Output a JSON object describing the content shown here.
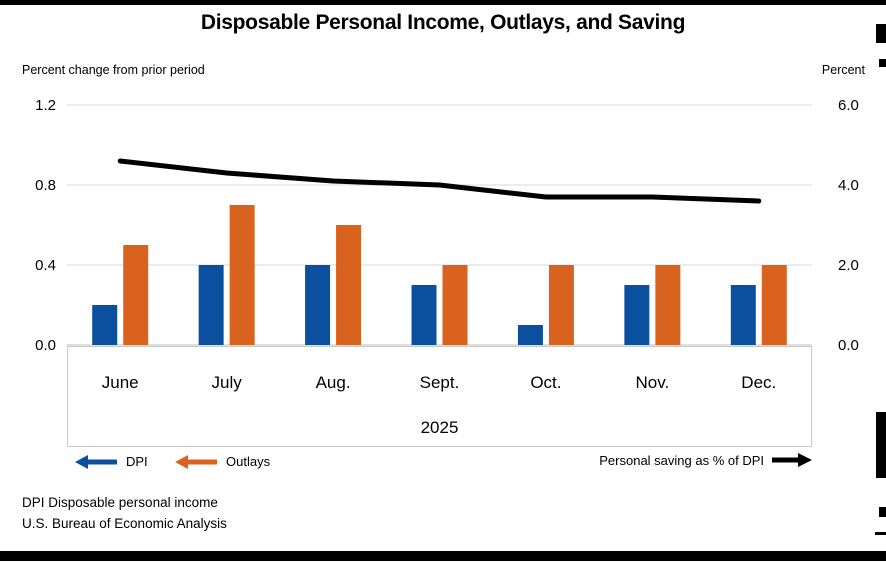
{
  "chart_data": {
    "type": "bar",
    "title": "Disposable Personal Income, Outlays, and Saving",
    "categories": [
      "June",
      "July",
      "Aug.",
      "Sept.",
      "Oct.",
      "Nov.",
      "Dec."
    ],
    "year_label": "2025",
    "series": [
      {
        "name": "DPI",
        "type": "bar",
        "axis": "left",
        "color": "#0B509E",
        "values": [
          0.2,
          0.4,
          0.4,
          0.3,
          0.1,
          0.3,
          0.3
        ]
      },
      {
        "name": "Outlays",
        "type": "bar",
        "axis": "left",
        "color": "#D9621F",
        "values": [
          0.5,
          0.7,
          0.6,
          0.4,
          0.4,
          0.4,
          0.4
        ]
      },
      {
        "name": "Personal saving as % of DPI",
        "type": "line",
        "axis": "right",
        "color": "#000000",
        "values": [
          4.6,
          4.3,
          4.1,
          4.0,
          3.7,
          3.7,
          3.6
        ]
      }
    ],
    "left_axis": {
      "label": "Percent change from prior period",
      "ticks": [
        "0.0",
        "0.4",
        "0.8",
        "1.2"
      ],
      "range": [
        0,
        1.2
      ]
    },
    "right_axis": {
      "label": "Percent",
      "ticks": [
        "0.0",
        "2.0",
        "4.0",
        "6.0"
      ],
      "range": [
        0,
        6.0
      ]
    },
    "grid": true,
    "legend_position": "bottom"
  },
  "footnotes": {
    "line1": "DPI Disposable personal income",
    "line2": "U.S. Bureau of Economic Analysis"
  },
  "colors": {
    "dpi_blue": "#0B509E",
    "outlays_orange": "#D9621F",
    "saving_line_black": "#000000",
    "gridline_gray": "#D9D9D9",
    "axis_gray": "#BFBFBF"
  }
}
